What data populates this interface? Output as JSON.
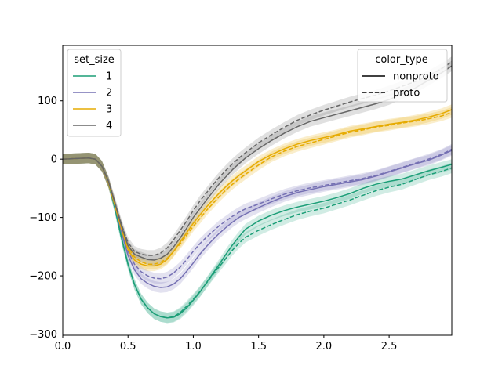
{
  "chart_data": {
    "type": "line",
    "title": "",
    "xlabel": "",
    "ylabel": "",
    "xlim": [
      0.0,
      2.98
    ],
    "ylim": [
      -302,
      195
    ],
    "x_ticks": [
      0.0,
      0.5,
      1.0,
      1.5,
      2.0,
      2.5
    ],
    "x_tick_labels": [
      "0.0",
      "0.5",
      "1.0",
      "1.5",
      "2.0",
      "2.5"
    ],
    "y_ticks": [
      -300,
      -200,
      -100,
      0,
      100
    ],
    "y_tick_labels": [
      "−300",
      "−200",
      "−100",
      "0",
      "100"
    ],
    "grid": false,
    "x": [
      0.0,
      0.1,
      0.2,
      0.25,
      0.3,
      0.35,
      0.4,
      0.45,
      0.5,
      0.55,
      0.6,
      0.65,
      0.7,
      0.75,
      0.8,
      0.85,
      0.9,
      0.95,
      1.0,
      1.05,
      1.1,
      1.15,
      1.2,
      1.25,
      1.3,
      1.35,
      1.4,
      1.5,
      1.6,
      1.7,
      1.8,
      1.9,
      2.0,
      2.1,
      2.2,
      2.3,
      2.4,
      2.5,
      2.6,
      2.7,
      2.8,
      2.9,
      2.98
    ],
    "legend_set_size": {
      "title": "set_size",
      "position": "upper-left",
      "entries": [
        {
          "label": "1",
          "color": "#1b9e77"
        },
        {
          "label": "2",
          "color": "#7570b3"
        },
        {
          "label": "3",
          "color": "#e6ab02"
        },
        {
          "label": "4",
          "color": "#666666"
        }
      ]
    },
    "legend_color_type": {
      "title": "color_type",
      "position": "upper-right",
      "entries": [
        {
          "label": "nonproto",
          "dash": "solid"
        },
        {
          "label": "proto",
          "dash": "dashed"
        }
      ]
    },
    "series": [
      {
        "set_size": "1",
        "color_type": "nonproto",
        "color": "#1b9e77",
        "dash": "solid",
        "band": 9,
        "values": [
          0,
          1,
          2,
          0,
          -12,
          -40,
          -85,
          -135,
          -180,
          -215,
          -240,
          -255,
          -265,
          -270,
          -272,
          -271,
          -265,
          -255,
          -242,
          -228,
          -212,
          -196,
          -180,
          -163,
          -147,
          -133,
          -120,
          -106,
          -96,
          -88,
          -82,
          -77,
          -72,
          -66,
          -59,
          -50,
          -43,
          -38,
          -34,
          -27,
          -20,
          -14,
          -9
        ]
      },
      {
        "set_size": "1",
        "color_type": "proto",
        "color": "#1b9e77",
        "dash": "dashed",
        "band": 9,
        "values": [
          0,
          1,
          2,
          0,
          -12,
          -40,
          -85,
          -135,
          -180,
          -215,
          -240,
          -255,
          -265,
          -270,
          -272,
          -270,
          -263,
          -252,
          -240,
          -227,
          -213,
          -198,
          -184,
          -170,
          -156,
          -144,
          -134,
          -122,
          -112,
          -103,
          -95,
          -89,
          -84,
          -77,
          -70,
          -62,
          -54,
          -48,
          -43,
          -35,
          -27,
          -21,
          -15
        ]
      },
      {
        "set_size": "2",
        "color_type": "nonproto",
        "color": "#7570b3",
        "dash": "solid",
        "band": 9,
        "values": [
          0,
          1,
          2,
          0,
          -12,
          -40,
          -80,
          -125,
          -165,
          -190,
          -205,
          -213,
          -218,
          -220,
          -219,
          -214,
          -205,
          -192,
          -178,
          -163,
          -150,
          -138,
          -127,
          -117,
          -108,
          -100,
          -94,
          -83,
          -73,
          -64,
          -57,
          -52,
          -47,
          -43,
          -39,
          -35,
          -29,
          -22,
          -15,
          -8,
          -2,
          7,
          15
        ]
      },
      {
        "set_size": "2",
        "color_type": "proto",
        "color": "#7570b3",
        "dash": "dashed",
        "band": 9,
        "values": [
          0,
          1,
          2,
          0,
          -12,
          -40,
          -80,
          -122,
          -158,
          -180,
          -193,
          -200,
          -204,
          -205,
          -202,
          -195,
          -185,
          -172,
          -158,
          -145,
          -134,
          -124,
          -114,
          -106,
          -98,
          -91,
          -85,
          -77,
          -68,
          -60,
          -54,
          -49,
          -45,
          -41,
          -37,
          -33,
          -28,
          -21,
          -14,
          -7,
          0,
          8,
          17
        ]
      },
      {
        "set_size": "3",
        "color_type": "nonproto",
        "color": "#e6ab02",
        "dash": "solid",
        "band": 9,
        "values": [
          0,
          1,
          2,
          0,
          -12,
          -40,
          -80,
          -120,
          -155,
          -173,
          -180,
          -183,
          -183,
          -180,
          -172,
          -158,
          -142,
          -126,
          -110,
          -96,
          -82,
          -70,
          -58,
          -47,
          -37,
          -28,
          -20,
          -4,
          8,
          18,
          26,
          32,
          37,
          42,
          48,
          52,
          56,
          60,
          63,
          67,
          72,
          78,
          85
        ]
      },
      {
        "set_size": "3",
        "color_type": "proto",
        "color": "#e6ab02",
        "dash": "dashed",
        "band": 9,
        "values": [
          0,
          1,
          2,
          0,
          -12,
          -40,
          -78,
          -117,
          -150,
          -168,
          -176,
          -180,
          -180,
          -177,
          -170,
          -158,
          -145,
          -130,
          -115,
          -102,
          -88,
          -76,
          -64,
          -53,
          -43,
          -34,
          -26,
          -10,
          4,
          14,
          22,
          28,
          34,
          40,
          46,
          50,
          55,
          58,
          62,
          65,
          69,
          74,
          80
        ]
      },
      {
        "set_size": "4",
        "color_type": "nonproto",
        "color": "#666666",
        "dash": "solid",
        "band": 9,
        "values": [
          0,
          1,
          2,
          0,
          -12,
          -38,
          -75,
          -115,
          -148,
          -163,
          -168,
          -172,
          -173,
          -170,
          -163,
          -150,
          -135,
          -118,
          -100,
          -85,
          -70,
          -56,
          -42,
          -30,
          -18,
          -8,
          2,
          18,
          32,
          45,
          56,
          65,
          71,
          77,
          83,
          89,
          95,
          102,
          112,
          122,
          135,
          148,
          160
        ]
      },
      {
        "set_size": "4",
        "color_type": "proto",
        "color": "#666666",
        "dash": "dashed",
        "band": 9,
        "values": [
          0,
          1,
          2,
          0,
          -12,
          -38,
          -75,
          -112,
          -143,
          -158,
          -163,
          -165,
          -165,
          -161,
          -152,
          -138,
          -122,
          -106,
          -88,
          -72,
          -58,
          -44,
          -31,
          -19,
          -8,
          2,
          11,
          28,
          42,
          55,
          67,
          76,
          84,
          91,
          98,
          104,
          110,
          117,
          125,
          133,
          143,
          155,
          167
        ]
      }
    ]
  }
}
